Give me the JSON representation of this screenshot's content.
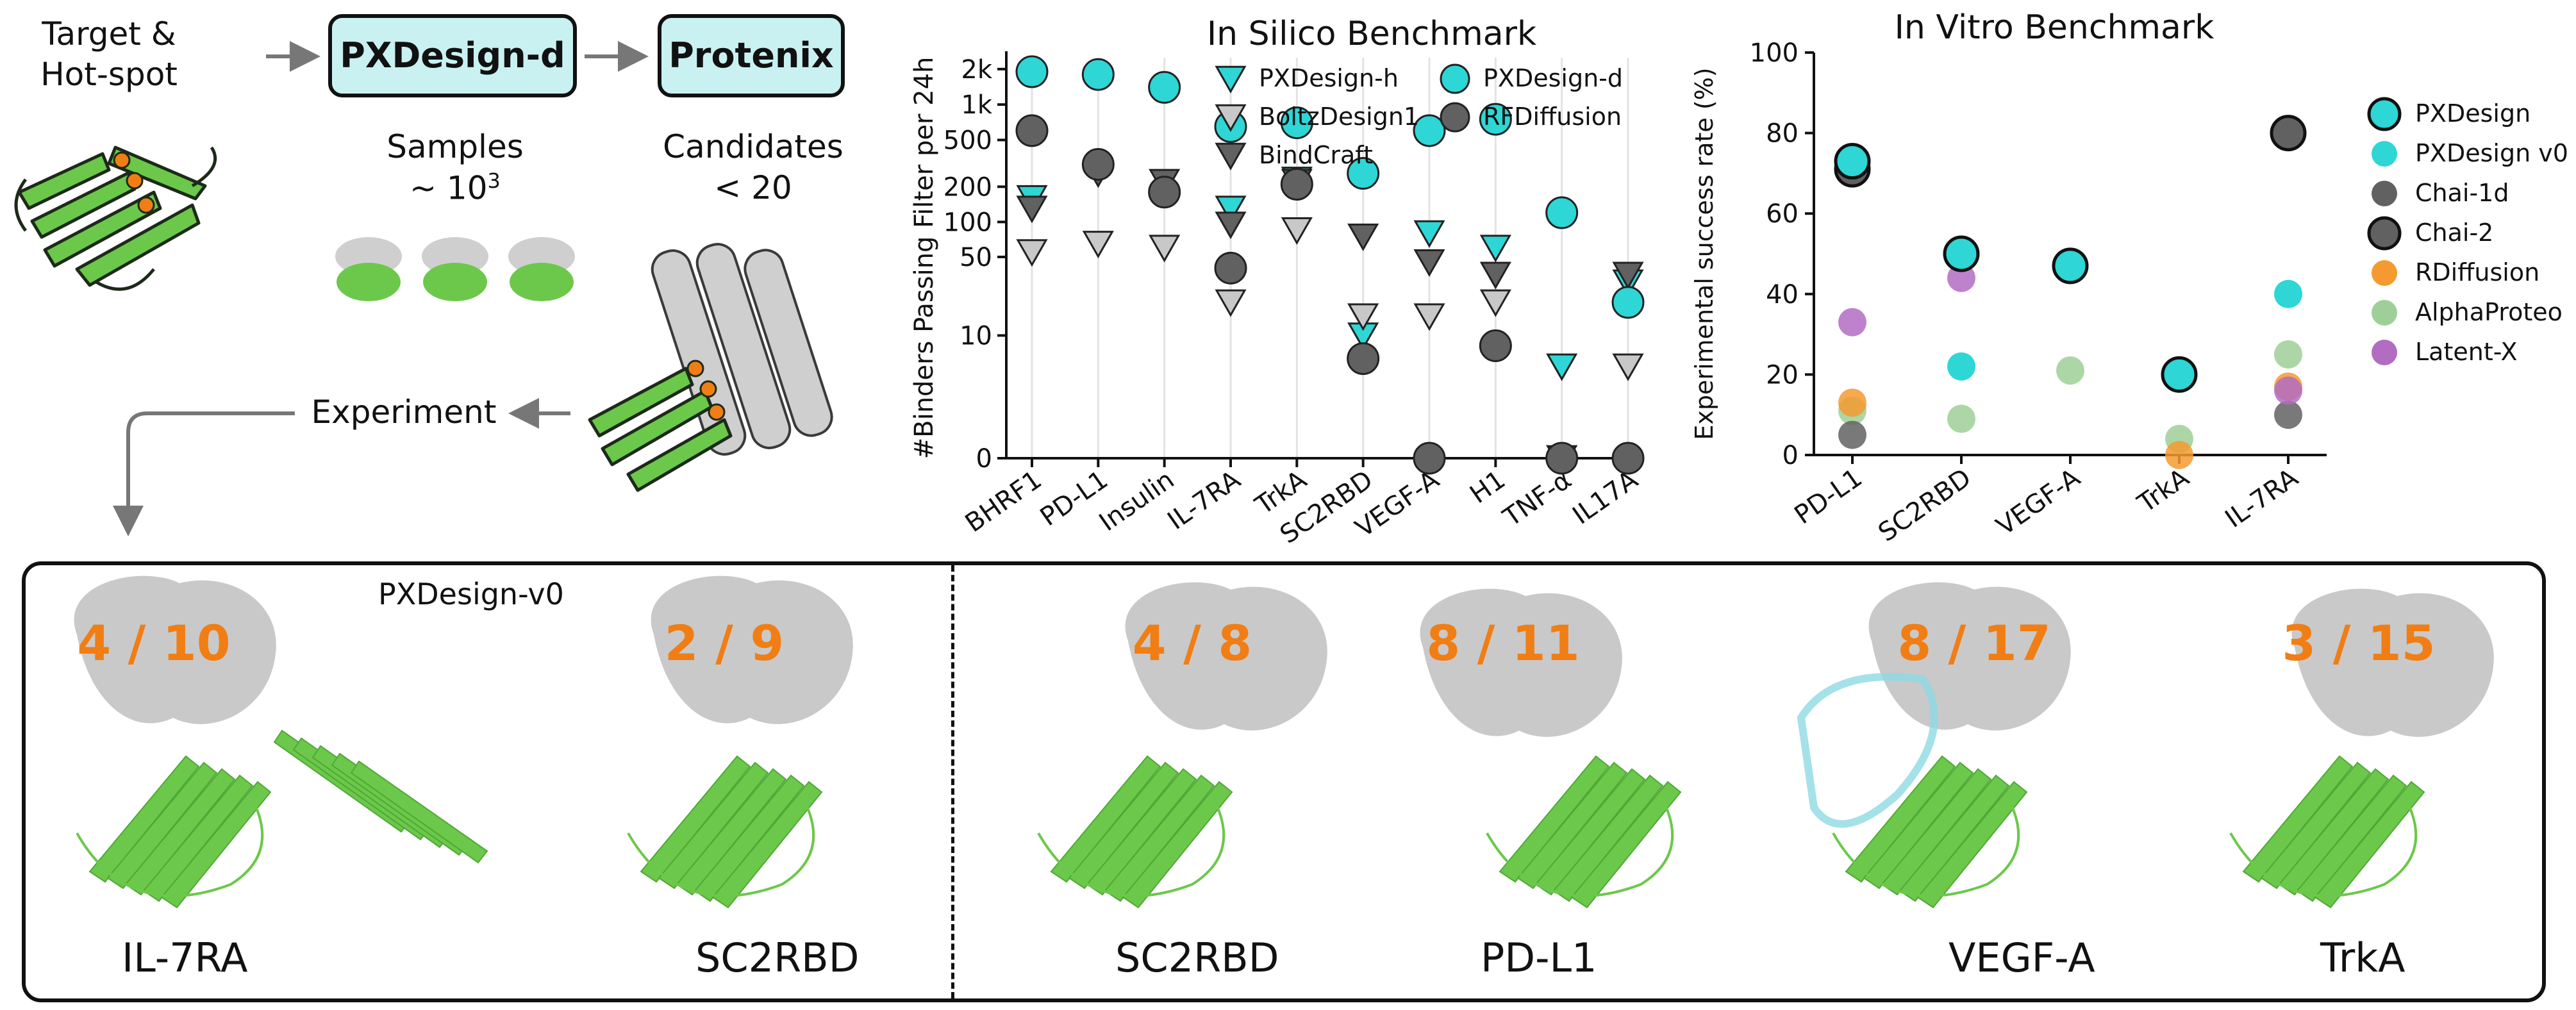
{
  "pipeline": {
    "target_label": "Target &\nHot-spot",
    "box1": "PXDesign-d",
    "box2": "Protenix",
    "samples_label": "Samples",
    "samples_value": "~ 10",
    "samples_exp": "3",
    "candidates_label": "Candidates",
    "candidates_value": "< 20",
    "experiment_label": "Experiment"
  },
  "bottom_panel": {
    "left_header": "PXDesign-v0",
    "structures": [
      {
        "fraction": "4 / 10",
        "name": "IL-7RA"
      },
      {
        "fraction": "2 / 9",
        "name": "SC2RBD"
      },
      {
        "fraction": "4 / 8",
        "name": "SC2RBD"
      },
      {
        "fraction": "8 / 11",
        "name": "PD-L1"
      },
      {
        "fraction": "8 / 17",
        "name": "VEGF-A"
      },
      {
        "fraction": "3 / 15",
        "name": "TrkA"
      }
    ]
  },
  "colors": {
    "cyan": "#2ed6d6",
    "light_gray": "#c8c8c8",
    "dark_gray": "#616161",
    "orange": "#f59a2f",
    "light_green": "#9fcf98",
    "purple": "#b26cc2",
    "protein_green": "#6cc84a",
    "box_fill": "#c9f1f1"
  },
  "chart_data": [
    {
      "type": "scatter",
      "title": "In Silico Benchmark",
      "ylabel": "#Binders Passing Filter per 24h",
      "xlabel": "",
      "y_scale": "symlog",
      "yticks": [
        "0",
        "10",
        "50",
        "100",
        "200",
        "500",
        "1k",
        "2k"
      ],
      "categories": [
        "BHRF1",
        "PD-L1",
        "Insulin",
        "IL-7RA",
        "TrkA",
        "SC2RBD",
        "VEGF-A",
        "H1",
        "TNF-α",
        "IL17A"
      ],
      "legend_position": "top",
      "series": [
        {
          "name": "PXDesign-h",
          "marker": "triangle-down",
          "color": "#2ed6d6",
          "values": [
            160,
            null,
            null,
            130,
            230,
            10,
            80,
            60,
            5,
            30
          ]
        },
        {
          "name": "BoltzDesign1",
          "marker": "triangle-down",
          "color": "#c8c8c8",
          "values": [
            55,
            65,
            60,
            20,
            85,
            15,
            15,
            20,
            0,
            5
          ]
        },
        {
          "name": "BindCraft",
          "marker": "triangle-down",
          "color": "#616161",
          "values": [
            130,
            260,
            220,
            95,
            220,
            75,
            45,
            35,
            0,
            35
          ]
        },
        {
          "name": "PXDesign-d",
          "marker": "circle",
          "color": "#2ed6d6",
          "values": [
            1900,
            1800,
            1400,
            650,
            700,
            260,
            600,
            750,
            120,
            20
          ]
        },
        {
          "name": "RFDiffusion",
          "marker": "circle",
          "color": "#616161",
          "values": [
            600,
            310,
            180,
            40,
            210,
            6,
            0,
            8,
            0,
            0
          ]
        }
      ]
    },
    {
      "type": "scatter",
      "title": "In Vitro Benchmark",
      "ylabel": "Experimental success rate (%)",
      "xlabel": "",
      "ylim": [
        0,
        100
      ],
      "yticks": [
        0,
        20,
        40,
        60,
        80,
        100
      ],
      "categories": [
        "PD-L1",
        "SC2RBD",
        "VEGF-A",
        "TrkA",
        "IL-7RA"
      ],
      "legend_position": "right",
      "series": [
        {
          "name": "PXDesign",
          "color": "#2ed6d6",
          "edge": "#111111",
          "values": [
            73,
            50,
            47,
            20,
            null
          ]
        },
        {
          "name": "PXDesign v0",
          "color": "#2ed6d6",
          "edge": null,
          "values": [
            null,
            22,
            null,
            null,
            40
          ]
        },
        {
          "name": "Chai-1d",
          "color": "#616161",
          "edge": null,
          "values": [
            5,
            null,
            null,
            null,
            10
          ]
        },
        {
          "name": "Chai-2",
          "color": "#616161",
          "edge": "#111111",
          "values": [
            71,
            null,
            null,
            null,
            80
          ]
        },
        {
          "name": "RDiffusion",
          "color": "#f59a2f",
          "edge": null,
          "values": [
            13,
            null,
            null,
            0,
            17
          ]
        },
        {
          "name": "AlphaProteo",
          "color": "#9fcf98",
          "edge": null,
          "values": [
            11,
            9,
            21,
            4,
            25
          ]
        },
        {
          "name": "Latent-X",
          "color": "#b26cc2",
          "edge": null,
          "values": [
            33,
            44,
            null,
            null,
            16
          ]
        }
      ]
    }
  ]
}
